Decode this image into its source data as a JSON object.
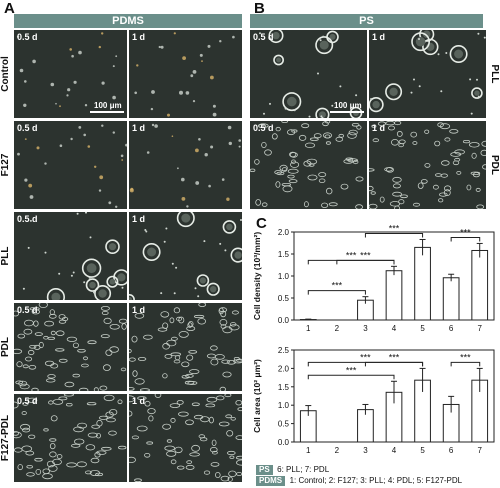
{
  "panels": {
    "a_letter": "A",
    "b_letter": "B",
    "c_letter": "C",
    "a_header": "PDMS",
    "b_header": "PS"
  },
  "colors": {
    "header": "#6b8f8a",
    "micro_bg": "#2c332f"
  },
  "rows_a": [
    {
      "label": "Control",
      "t1": "0.5 d",
      "t2": "1 d",
      "kind": "sparse"
    },
    {
      "label": "F127",
      "t1": "0.5 d",
      "t2": "1 d",
      "kind": "sparse"
    },
    {
      "label": "PLL",
      "t1": "0.5 d",
      "t2": "1 d",
      "kind": "cluster"
    },
    {
      "label": "PDL",
      "t1": "0.5 d",
      "t2": "1 d",
      "kind": "spread"
    },
    {
      "label": "F127-PDL",
      "t1": "0.5 d",
      "t2": "1 d",
      "kind": "spread"
    }
  ],
  "rows_b": [
    {
      "label": "PLL",
      "t1": "0.5 d",
      "t2": "1 d",
      "kind": "cluster"
    },
    {
      "label": "PDL",
      "t1": "0.5 d",
      "t2": "1 d",
      "kind": "spread"
    }
  ],
  "scale_label": "100 μm",
  "sig": "***",
  "chart_data": [
    {
      "type": "bar",
      "categories": [
        "1",
        "2",
        "3",
        "4",
        "5",
        "6",
        "7"
      ],
      "values": [
        0.01,
        0.0,
        0.45,
        1.12,
        1.65,
        0.96,
        1.58
      ],
      "errors": [
        0.01,
        0.0,
        0.08,
        0.1,
        0.18,
        0.08,
        0.16
      ],
      "ylabel": "Cell density (10³/mm²)",
      "ylim": [
        0,
        2.0
      ],
      "yticks": [
        "0.0",
        "0.5",
        "1.0",
        "1.5",
        "2.0"
      ],
      "significance": [
        [
          "1",
          "3"
        ],
        [
          "2",
          "4"
        ],
        [
          "3",
          "5"
        ],
        [
          "1",
          "4"
        ],
        [
          "6",
          "7"
        ]
      ]
    },
    {
      "type": "bar",
      "categories": [
        "1",
        "2",
        "3",
        "4",
        "5",
        "6",
        "7"
      ],
      "values": [
        0.85,
        0.0,
        0.88,
        1.35,
        1.68,
        1.02,
        1.68
      ],
      "errors": [
        0.14,
        0.0,
        0.14,
        0.3,
        0.32,
        0.22,
        0.32
      ],
      "ylabel": "Cell area (10² μm²)",
      "ylim": [
        0,
        2.5
      ],
      "yticks": [
        "0.0",
        "0.5",
        "1.0",
        "1.5",
        "2.0",
        "2.5"
      ],
      "significance": [
        [
          "1",
          "4"
        ],
        [
          "3",
          "5"
        ],
        [
          "1",
          "5"
        ],
        [
          "6",
          "7"
        ]
      ]
    }
  ],
  "legend": {
    "ps_tag": "PS",
    "ps_text": "6: PLL; 7: PDL",
    "pdms_tag": "PDMS",
    "pdms_text": "1: Control; 2: F127; 3: PLL; 4: PDL; 5: F127-PDL"
  }
}
